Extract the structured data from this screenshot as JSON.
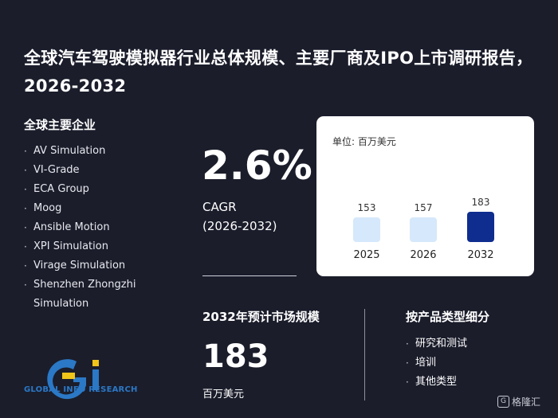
{
  "title": "全球汽车驾驶模拟器行业总体规模、主要厂商及IPO上市调研报告，2026-2032",
  "companies": {
    "heading": "全球主要企业",
    "items": [
      "AV Simulation",
      "VI-Grade",
      "ECA Group",
      "Moog",
      "Ansible Motion",
      "XPI Simulation",
      "Virage Simulation",
      "Shenzhen Zhongzhi Simulation"
    ]
  },
  "cagr": {
    "value": "2.6%",
    "label": "CAGR",
    "period": "(2026-2032)"
  },
  "market_size": {
    "heading": "2032年预计市场规模",
    "value": "183",
    "unit": "百万美元"
  },
  "segments": {
    "heading": "按产品类型细分",
    "items": [
      "研究和测试",
      "培训",
      "其他类型"
    ]
  },
  "branding": {
    "logo_text": "GLOBAL INFO RESEARCH",
    "badge": "格隆汇"
  },
  "colors": {
    "background": "#1b1d2b",
    "bar_light": "#d6e8fb",
    "bar_highlight": "#0e2d8e",
    "logo_blue": "#2b78c6",
    "logo_yellow": "#f0c419"
  },
  "chart_data": {
    "type": "bar",
    "unit_label": "单位: 百万美元",
    "categories": [
      "2025",
      "2026",
      "2032"
    ],
    "values": [
      153,
      157,
      183
    ],
    "highlight_index": 2,
    "ylim": [
      0,
      183
    ]
  }
}
